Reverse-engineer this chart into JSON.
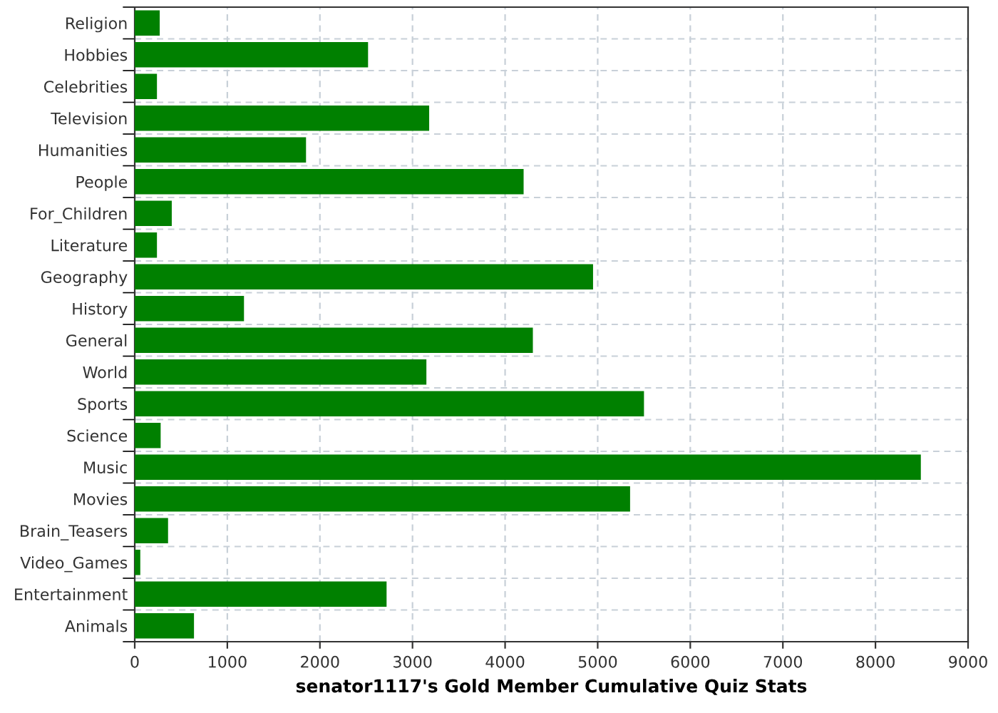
{
  "chart_data": {
    "type": "bar",
    "orientation": "horizontal",
    "xlabel": "senator1117's Gold Member Cumulative Quiz Stats",
    "categories": [
      "Religion",
      "Hobbies",
      "Celebrities",
      "Television",
      "Humanities",
      "People",
      "For_Children",
      "Literature",
      "Geography",
      "History",
      "General",
      "World",
      "Sports",
      "Science",
      "Music",
      "Movies",
      "Brain_Teasers",
      "Video_Games",
      "Entertainment",
      "Animals"
    ],
    "values": [
      270,
      2520,
      240,
      3180,
      1850,
      4200,
      400,
      240,
      4950,
      1180,
      4300,
      3150,
      5500,
      280,
      8490,
      5350,
      360,
      60,
      2720,
      640
    ],
    "color": "#008000",
    "xlim": [
      0,
      9000
    ],
    "xticks": [
      0,
      1000,
      2000,
      3000,
      4000,
      5000,
      6000,
      7000,
      8000,
      9000
    ],
    "grid": true
  }
}
